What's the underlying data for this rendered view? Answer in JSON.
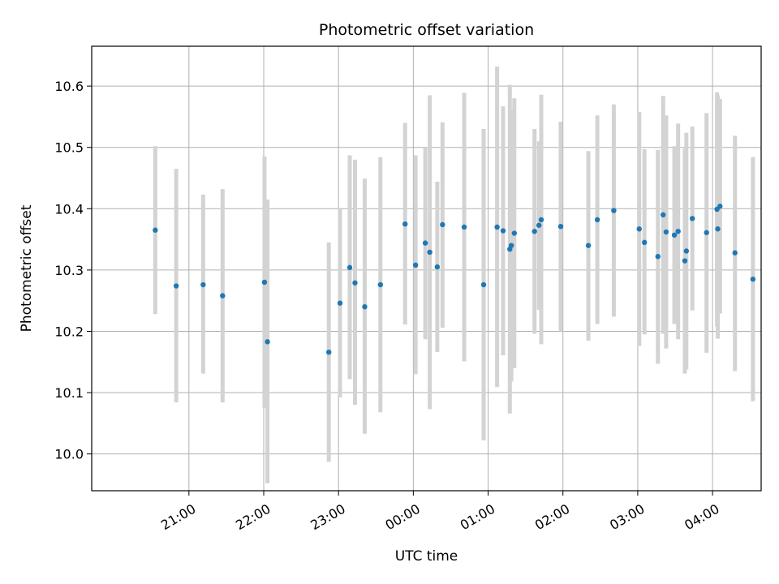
{
  "chart_data": {
    "type": "scatter",
    "title": "Photometric offset variation",
    "xlabel": "UTC time",
    "ylabel": "Photometric offset",
    "x_unit": "hours from 00:00 UTC",
    "xlim": [
      -4.3,
      4.65
    ],
    "ylim": [
      9.94,
      10.665
    ],
    "grid": true,
    "x_ticks": [
      {
        "value": -3,
        "label": "21:00"
      },
      {
        "value": -2,
        "label": "22:00"
      },
      {
        "value": -1,
        "label": "23:00"
      },
      {
        "value": 0,
        "label": "00:00"
      },
      {
        "value": 1,
        "label": "01:00"
      },
      {
        "value": 2,
        "label": "02:00"
      },
      {
        "value": 3,
        "label": "03:00"
      },
      {
        "value": 4,
        "label": "04:00"
      }
    ],
    "y_ticks": [
      {
        "value": 10.0,
        "label": "10.0"
      },
      {
        "value": 10.1,
        "label": "10.1"
      },
      {
        "value": 10.2,
        "label": "10.2"
      },
      {
        "value": 10.3,
        "label": "10.3"
      },
      {
        "value": 10.4,
        "label": "10.4"
      },
      {
        "value": 10.5,
        "label": "10.5"
      },
      {
        "value": 10.6,
        "label": "10.6"
      }
    ],
    "colors": {
      "point": "#1f77b4",
      "errorbar": "#d3d3d3",
      "grid": "#b0b0b0"
    },
    "points": [
      {
        "x": -3.45,
        "y": 10.365,
        "lo": 10.228,
        "hi": 10.502
      },
      {
        "x": -3.17,
        "y": 10.274,
        "lo": 10.084,
        "hi": 10.465
      },
      {
        "x": -2.81,
        "y": 10.276,
        "lo": 10.131,
        "hi": 10.423
      },
      {
        "x": -2.55,
        "y": 10.258,
        "lo": 10.084,
        "hi": 10.432
      },
      {
        "x": -1.99,
        "y": 10.28,
        "lo": 10.075,
        "hi": 10.485
      },
      {
        "x": -1.95,
        "y": 10.183,
        "lo": 9.952,
        "hi": 10.415
      },
      {
        "x": -1.13,
        "y": 10.166,
        "lo": 9.987,
        "hi": 10.345
      },
      {
        "x": -0.98,
        "y": 10.246,
        "lo": 10.092,
        "hi": 10.4
      },
      {
        "x": -0.85,
        "y": 10.304,
        "lo": 10.122,
        "hi": 10.487
      },
      {
        "x": -0.78,
        "y": 10.279,
        "lo": 10.08,
        "hi": 10.48
      },
      {
        "x": -0.65,
        "y": 10.24,
        "lo": 10.033,
        "hi": 10.449
      },
      {
        "x": -0.44,
        "y": 10.276,
        "lo": 10.068,
        "hi": 10.484
      },
      {
        "x": -0.11,
        "y": 10.375,
        "lo": 10.211,
        "hi": 10.54
      },
      {
        "x": 0.03,
        "y": 10.308,
        "lo": 10.13,
        "hi": 10.487
      },
      {
        "x": 0.16,
        "y": 10.344,
        "lo": 10.187,
        "hi": 10.5
      },
      {
        "x": 0.22,
        "y": 10.329,
        "lo": 10.073,
        "hi": 10.585
      },
      {
        "x": 0.32,
        "y": 10.305,
        "lo": 10.166,
        "hi": 10.444
      },
      {
        "x": 0.39,
        "y": 10.374,
        "lo": 10.206,
        "hi": 10.541
      },
      {
        "x": 0.68,
        "y": 10.37,
        "lo": 10.151,
        "hi": 10.589
      },
      {
        "x": 0.94,
        "y": 10.276,
        "lo": 10.022,
        "hi": 10.53
      },
      {
        "x": 1.12,
        "y": 10.37,
        "lo": 10.109,
        "hi": 10.632
      },
      {
        "x": 1.2,
        "y": 10.364,
        "lo": 10.161,
        "hi": 10.567
      },
      {
        "x": 1.29,
        "y": 10.334,
        "lo": 10.066,
        "hi": 10.602
      },
      {
        "x": 1.31,
        "y": 10.34,
        "lo": 10.118,
        "hi": 10.561
      },
      {
        "x": 1.35,
        "y": 10.36,
        "lo": 10.14,
        "hi": 10.58
      },
      {
        "x": 1.62,
        "y": 10.363,
        "lo": 10.196,
        "hi": 10.53
      },
      {
        "x": 1.68,
        "y": 10.373,
        "lo": 10.235,
        "hi": 10.51
      },
      {
        "x": 1.71,
        "y": 10.382,
        "lo": 10.179,
        "hi": 10.586
      },
      {
        "x": 1.97,
        "y": 10.371,
        "lo": 10.2,
        "hi": 10.542
      },
      {
        "x": 2.34,
        "y": 10.34,
        "lo": 10.185,
        "hi": 10.494
      },
      {
        "x": 2.46,
        "y": 10.382,
        "lo": 10.212,
        "hi": 10.552
      },
      {
        "x": 2.68,
        "y": 10.397,
        "lo": 10.224,
        "hi": 10.57
      },
      {
        "x": 3.02,
        "y": 10.367,
        "lo": 10.176,
        "hi": 10.558
      },
      {
        "x": 3.09,
        "y": 10.345,
        "lo": 10.195,
        "hi": 10.497
      },
      {
        "x": 3.27,
        "y": 10.322,
        "lo": 10.147,
        "hi": 10.496
      },
      {
        "x": 3.34,
        "y": 10.39,
        "lo": 10.196,
        "hi": 10.584
      },
      {
        "x": 3.38,
        "y": 10.362,
        "lo": 10.172,
        "hi": 10.552
      },
      {
        "x": 3.49,
        "y": 10.357,
        "lo": 10.212,
        "hi": 10.502
      },
      {
        "x": 3.54,
        "y": 10.363,
        "lo": 10.187,
        "hi": 10.539
      },
      {
        "x": 3.63,
        "y": 10.315,
        "lo": 10.131,
        "hi": 10.498
      },
      {
        "x": 3.65,
        "y": 10.331,
        "lo": 10.138,
        "hi": 10.524
      },
      {
        "x": 3.73,
        "y": 10.384,
        "lo": 10.234,
        "hi": 10.534
      },
      {
        "x": 3.92,
        "y": 10.361,
        "lo": 10.165,
        "hi": 10.556
      },
      {
        "x": 4.06,
        "y": 10.399,
        "lo": 10.208,
        "hi": 10.59
      },
      {
        "x": 4.07,
        "y": 10.367,
        "lo": 10.188,
        "hi": 10.585
      },
      {
        "x": 4.1,
        "y": 10.404,
        "lo": 10.229,
        "hi": 10.579
      },
      {
        "x": 4.3,
        "y": 10.328,
        "lo": 10.135,
        "hi": 10.519
      },
      {
        "x": 4.54,
        "y": 10.285,
        "lo": 10.086,
        "hi": 10.484
      }
    ]
  }
}
